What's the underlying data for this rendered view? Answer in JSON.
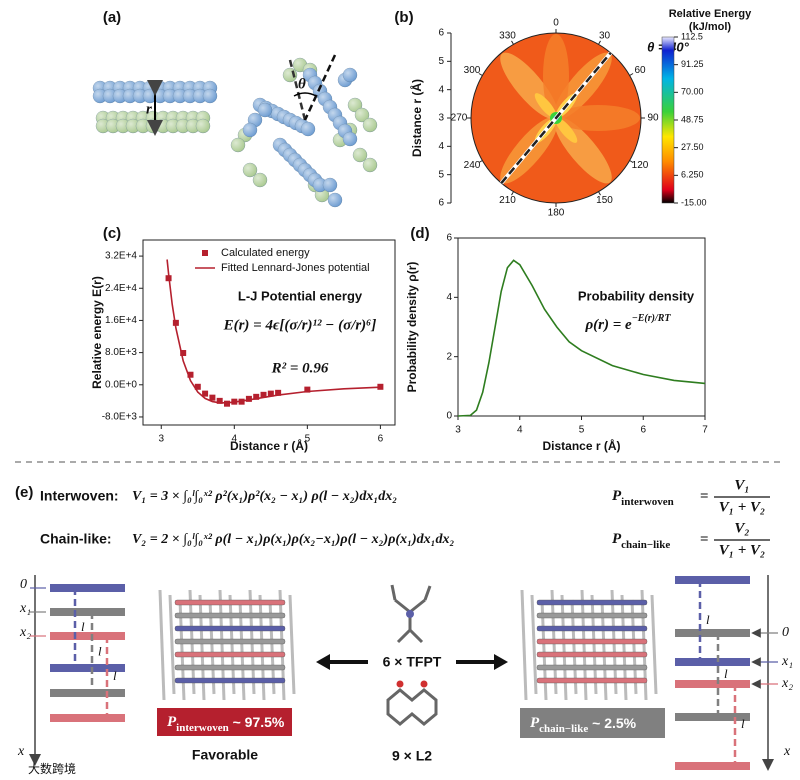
{
  "panel_labels": [
    "(a)",
    "(b)",
    "(c)",
    "(d)",
    "(e)"
  ],
  "panel_a": {
    "distance_label": "r",
    "angle_label": "θ"
  },
  "panel_b": {
    "angles": [
      0,
      30,
      60,
      90,
      120,
      150,
      180,
      210,
      240,
      270,
      300,
      330
    ],
    "radial_label": "Distance r (Å)",
    "rlim": [
      3,
      6
    ],
    "rticks": [
      3,
      4,
      5,
      6
    ],
    "colorbar_title": [
      "Relative Energy",
      "(kJ/mol)"
    ],
    "clim": [
      -15,
      112.5
    ],
    "cticks": [
      112.5,
      91.25,
      {
        "value": 70,
        "label": "70.00"
      },
      48.75,
      {
        "value": 27.5,
        "label": "27.50"
      },
      {
        "value": 6.25,
        "label": "6.250"
      },
      {
        "value": -15,
        "label": "-15.00"
      }
    ],
    "annotation": "θ = 40°",
    "annotation_angle": 40
  },
  "chart_data": [
    {
      "type": "scatter",
      "xlabel": "Distance r (Å)",
      "ylabel": "Relative energy E(r)",
      "xlim": [
        2.75,
        6.2
      ],
      "ylim": [
        -10000,
        36000
      ],
      "xticks": [
        3,
        4,
        5,
        6
      ],
      "yticks": [
        {
          "value": -8000,
          "label": "-8.0E+3"
        },
        {
          "value": 0,
          "label": "0.0E+0"
        },
        {
          "value": 8000,
          "label": "8.0E+3"
        },
        {
          "value": 16000,
          "label": "1.6E+4"
        },
        {
          "value": 24000,
          "label": "2.4E+4"
        },
        {
          "value": 32000,
          "label": "3.2E+4"
        }
      ],
      "legend": true,
      "series": [
        {
          "name": "Calculated energy",
          "mark": "square",
          "color": "#b5202e",
          "x": [
            3.1,
            3.2,
            3.3,
            3.4,
            3.5,
            3.6,
            3.7,
            3.8,
            3.9,
            4.0,
            4.1,
            4.2,
            4.3,
            4.4,
            4.5,
            4.6,
            5.0,
            6.0
          ],
          "values": [
            26500,
            15400,
            7900,
            2500,
            -500,
            -2200,
            -3200,
            -4000,
            -4700,
            -4200,
            -4200,
            -3500,
            -3000,
            -2500,
            -2200,
            -2000,
            -1200,
            -500
          ]
        },
        {
          "name": "Fitted Lennard-Jones potential",
          "mark": "line",
          "color": "#b5202e",
          "x": [
            3.08,
            3.1,
            3.15,
            3.2,
            3.3,
            3.4,
            3.5,
            3.6,
            3.7,
            3.8,
            3.9,
            4.0,
            4.2,
            4.4,
            4.6,
            5.0,
            5.5,
            6.0
          ],
          "values": [
            31160,
            27580,
            20010,
            14100,
            5930,
            1020,
            -1820,
            -3390,
            -4170,
            -4470,
            -4470,
            -4310,
            -3750,
            -3130,
            -2560,
            -1680,
            -1000,
            -605
          ]
        }
      ],
      "annotations": [
        "L-J Potential energy",
        "E(r) = 4ϵ[(σ/r)¹² − (σ/r)⁶]",
        "R² = 0.96"
      ]
    },
    {
      "type": "line",
      "xlabel": "Distance r (Å)",
      "ylabel": "Probability density  ρ(r)",
      "xlim": [
        3,
        7
      ],
      "ylim": [
        0,
        6
      ],
      "xticks": [
        3,
        4,
        5,
        6,
        7
      ],
      "yticks": [
        0,
        2,
        4,
        6
      ],
      "legend": false,
      "series": [
        {
          "mark": "line",
          "color": "#2e7d1f",
          "x": [
            3.0,
            3.2,
            3.3,
            3.4,
            3.5,
            3.6,
            3.7,
            3.8,
            3.9,
            4.0,
            4.2,
            4.4,
            4.6,
            4.8,
            5.0,
            5.5,
            6.0,
            6.5,
            7.0
          ],
          "values": [
            0,
            0.02,
            0.2,
            0.8,
            1.8,
            3.0,
            4.2,
            5.0,
            5.25,
            5.1,
            4.4,
            3.6,
            3.0,
            2.5,
            2.2,
            1.7,
            1.4,
            1.2,
            1.1
          ]
        }
      ],
      "annotations": [
        "Probability density",
        {
          "base": "ρ(r) = e",
          "exponent": "−E(r)/RT"
        }
      ]
    }
  ],
  "panel_e": {
    "rows": [
      {
        "label": "Interwoven:",
        "equation": "V₁ = 3 × ∫₀ˡ∫₀ˣ² ρ²(x₁)ρ²(x₂ − x₁) ρ(l − x₂)dx₁dx₂",
        "fraction": {
          "symbol": "P",
          "subscript": "interwoven",
          "numerator": "V₁",
          "denominator": "V₁ + V₂"
        }
      },
      {
        "label": "Chain-like:",
        "equation": "V₂ = 2 × ∫₀ˡ∫₀ˣ² ρ(l − x₁)ρ(x₁)ρ(x₂−x₁)ρ(l − x₂)ρ(x₁)dx₁dx₂",
        "fraction": {
          "symbol": "P",
          "subscript": "chain−like",
          "numerator": "V₂",
          "denominator": "V₁ + V₂"
        }
      }
    ],
    "left_diagram": {
      "labels": [
        "0",
        "x₁",
        "x₂"
      ],
      "spacing": [
        "l",
        "l",
        "l"
      ],
      "axis": "x"
    },
    "right_diagram": {
      "labels": [
        "0",
        "x₁",
        "x₂"
      ],
      "spacing": [
        "l",
        "l",
        "l"
      ],
      "axis": "x"
    },
    "components": [
      "6 × TFPT",
      "9 × L2"
    ],
    "left_result": {
      "symbol": "P",
      "subscript": "interwoven",
      "text": " ~ 97.5%",
      "note": "Favorable"
    },
    "right_result": {
      "symbol": "P",
      "subscript": "chain−like",
      "text": " ~ 2.5%"
    },
    "watermark": "大数跨境"
  }
}
